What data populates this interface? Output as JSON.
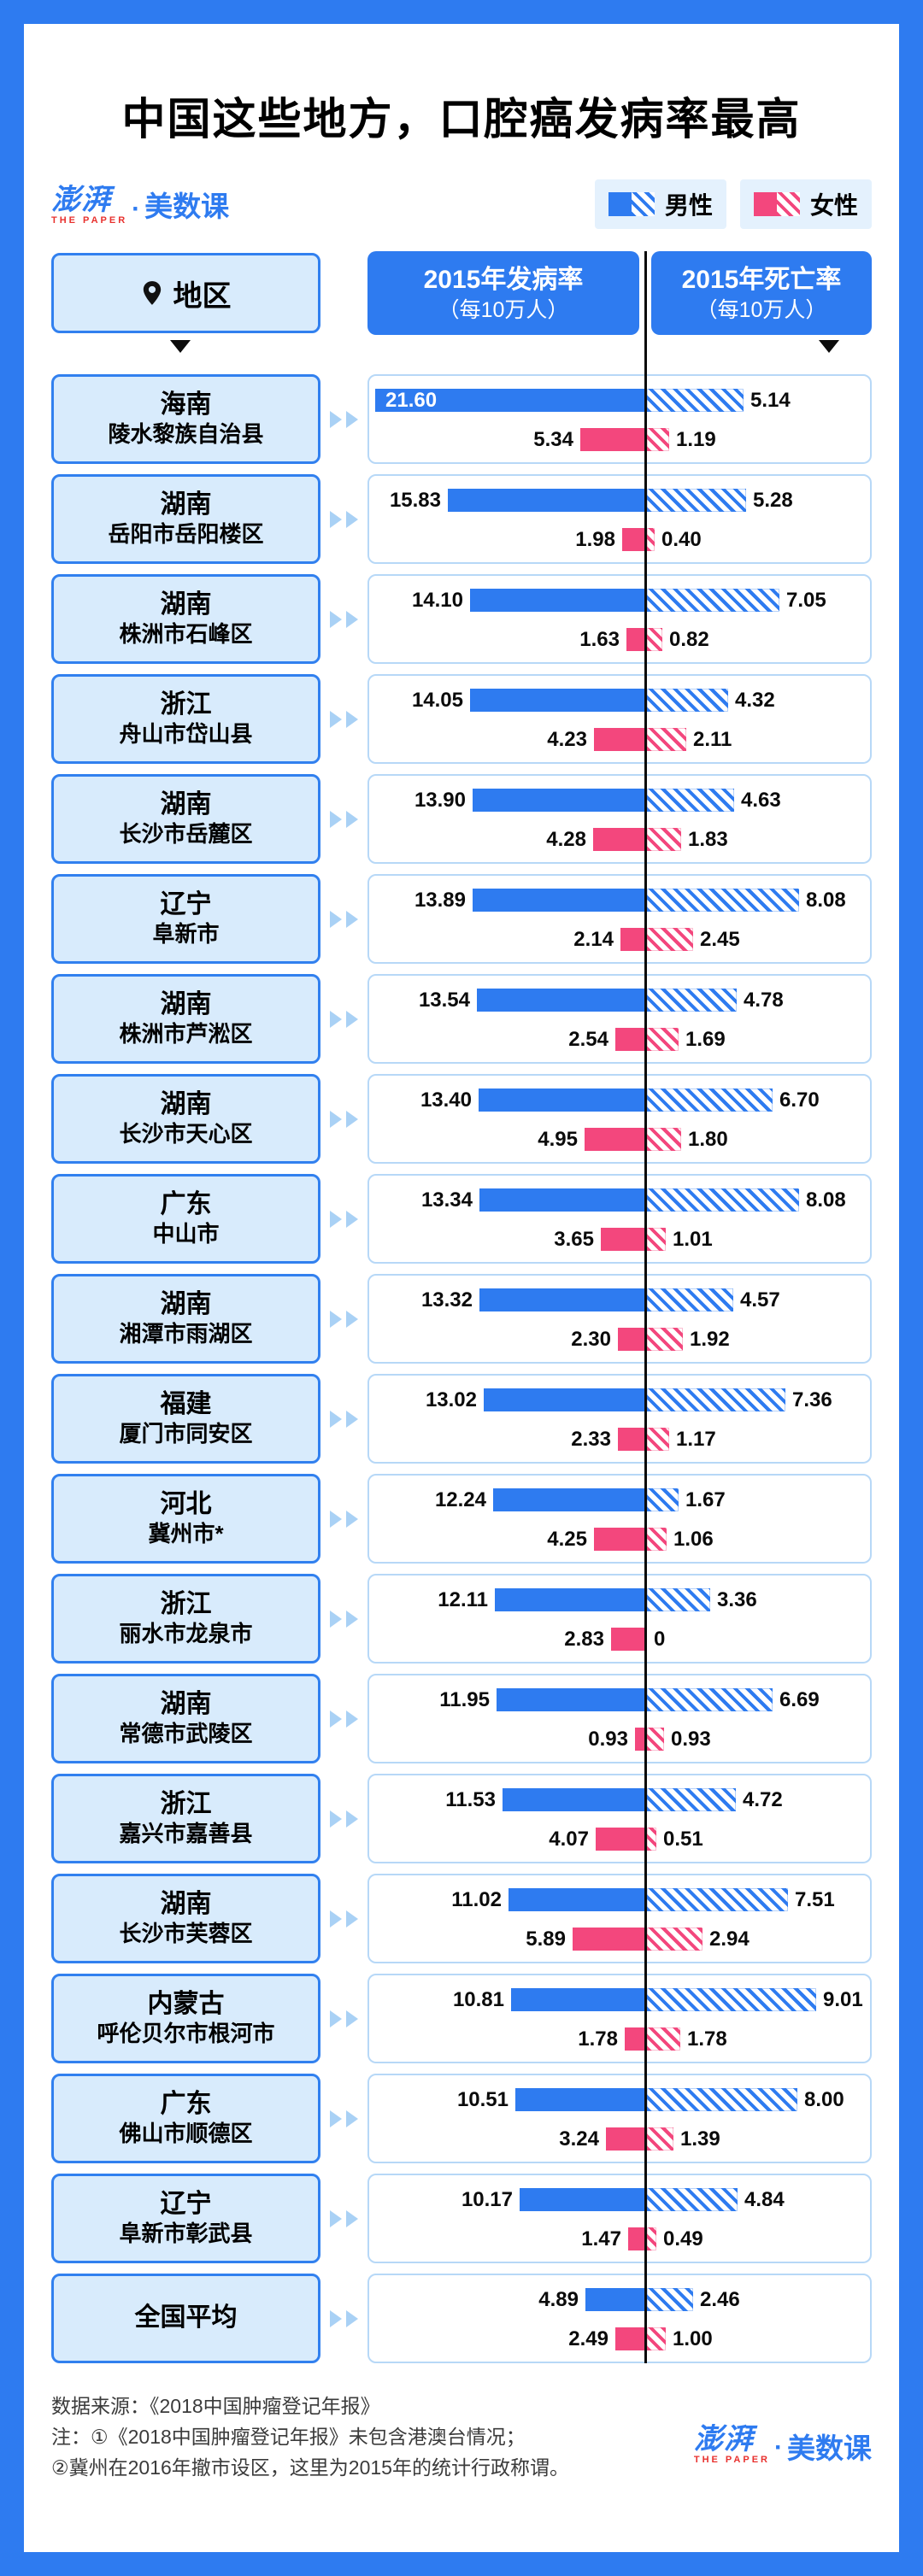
{
  "title": "中国这些地方，口腔癌发病率最高",
  "brand": {
    "name_cn": "澎湃",
    "name_en": "THE PAPER",
    "separator": "·",
    "suffix": "美数课"
  },
  "legend": {
    "male_label": "男性",
    "female_label": "女性",
    "male_color": "#2E7BF0",
    "female_color": "#F3477D"
  },
  "header": {
    "region_label": "地区",
    "incidence_title": "2015年发病率",
    "incidence_unit": "（每10万人）",
    "mortality_title": "2015年死亡率",
    "mortality_unit": "（每10万人）"
  },
  "chart_data": {
    "type": "bar",
    "layout": "diverging-horizontal",
    "series_groups": [
      "男性",
      "女性"
    ],
    "measures": [
      "2015年发病率（每10万人）",
      "2015年死亡率（每10万人）"
    ],
    "incidence_axis_max": 22,
    "mortality_axis_max": 9.5,
    "rows": [
      {
        "province": "海南",
        "city": "陵水黎族自治县",
        "male_incidence": "21.60",
        "female_incidence": "5.34",
        "male_mortality": "5.14",
        "female_mortality": "1.19"
      },
      {
        "province": "湖南",
        "city": "岳阳市岳阳楼区",
        "male_incidence": "15.83",
        "female_incidence": "1.98",
        "male_mortality": "5.28",
        "female_mortality": "0.40"
      },
      {
        "province": "湖南",
        "city": "株洲市石峰区",
        "male_incidence": "14.10",
        "female_incidence": "1.63",
        "male_mortality": "7.05",
        "female_mortality": "0.82"
      },
      {
        "province": "浙江",
        "city": "舟山市岱山县",
        "male_incidence": "14.05",
        "female_incidence": "4.23",
        "male_mortality": "4.32",
        "female_mortality": "2.11"
      },
      {
        "province": "湖南",
        "city": "长沙市岳麓区",
        "male_incidence": "13.90",
        "female_incidence": "4.28",
        "male_mortality": "4.63",
        "female_mortality": "1.83"
      },
      {
        "province": "辽宁",
        "city": "阜新市",
        "male_incidence": "13.89",
        "female_incidence": "2.14",
        "male_mortality": "8.08",
        "female_mortality": "2.45"
      },
      {
        "province": "湖南",
        "city": "株洲市芦淞区",
        "male_incidence": "13.54",
        "female_incidence": "2.54",
        "male_mortality": "4.78",
        "female_mortality": "1.69"
      },
      {
        "province": "湖南",
        "city": "长沙市天心区",
        "male_incidence": "13.40",
        "female_incidence": "4.95",
        "male_mortality": "6.70",
        "female_mortality": "1.80"
      },
      {
        "province": "广东",
        "city": "中山市",
        "male_incidence": "13.34",
        "female_incidence": "3.65",
        "male_mortality": "8.08",
        "female_mortality": "1.01"
      },
      {
        "province": "湖南",
        "city": "湘潭市雨湖区",
        "male_incidence": "13.32",
        "female_incidence": "2.30",
        "male_mortality": "4.57",
        "female_mortality": "1.92"
      },
      {
        "province": "福建",
        "city": "厦门市同安区",
        "male_incidence": "13.02",
        "female_incidence": "2.33",
        "male_mortality": "7.36",
        "female_mortality": "1.17"
      },
      {
        "province": "河北",
        "city": "冀州市*",
        "male_incidence": "12.24",
        "female_incidence": "4.25",
        "male_mortality": "1.67",
        "female_mortality": "1.06"
      },
      {
        "province": "浙江",
        "city": "丽水市龙泉市",
        "male_incidence": "12.11",
        "female_incidence": "2.83",
        "male_mortality": "3.36",
        "female_mortality": "0"
      },
      {
        "province": "湖南",
        "city": "常德市武陵区",
        "male_incidence": "11.95",
        "female_incidence": "0.93",
        "male_mortality": "6.69",
        "female_mortality": "0.93"
      },
      {
        "province": "浙江",
        "city": "嘉兴市嘉善县",
        "male_incidence": "11.53",
        "female_incidence": "4.07",
        "male_mortality": "4.72",
        "female_mortality": "0.51"
      },
      {
        "province": "湖南",
        "city": "长沙市芙蓉区",
        "male_incidence": "11.02",
        "female_incidence": "5.89",
        "male_mortality": "7.51",
        "female_mortality": "2.94"
      },
      {
        "province": "内蒙古",
        "city": "呼伦贝尔市根河市",
        "male_incidence": "10.81",
        "female_incidence": "1.78",
        "male_mortality": "9.01",
        "female_mortality": "1.78"
      },
      {
        "province": "广东",
        "city": "佛山市顺德区",
        "male_incidence": "10.51",
        "female_incidence": "3.24",
        "male_mortality": "8.00",
        "female_mortality": "1.39"
      },
      {
        "province": "辽宁",
        "city": "阜新市彰武县",
        "male_incidence": "10.17",
        "female_incidence": "1.47",
        "male_mortality": "4.84",
        "female_mortality": "0.49"
      },
      {
        "province": "全国平均",
        "city": "",
        "male_incidence": "4.89",
        "female_incidence": "2.49",
        "male_mortality": "2.46",
        "female_mortality": "1.00"
      }
    ]
  },
  "footer": {
    "source": "数据来源：《2018中国肿瘤登记年报》",
    "note1": "注：①《2018中国肿瘤登记年报》未包含港澳台情况；",
    "note2": "②冀州在2016年撤市设区，这里为2015年的统计行政称谓。"
  },
  "colors": {
    "frame": "#2E7BF0",
    "male": "#2E7BF0",
    "female": "#F3477D",
    "light_blue_fill": "#D8EBFC"
  }
}
